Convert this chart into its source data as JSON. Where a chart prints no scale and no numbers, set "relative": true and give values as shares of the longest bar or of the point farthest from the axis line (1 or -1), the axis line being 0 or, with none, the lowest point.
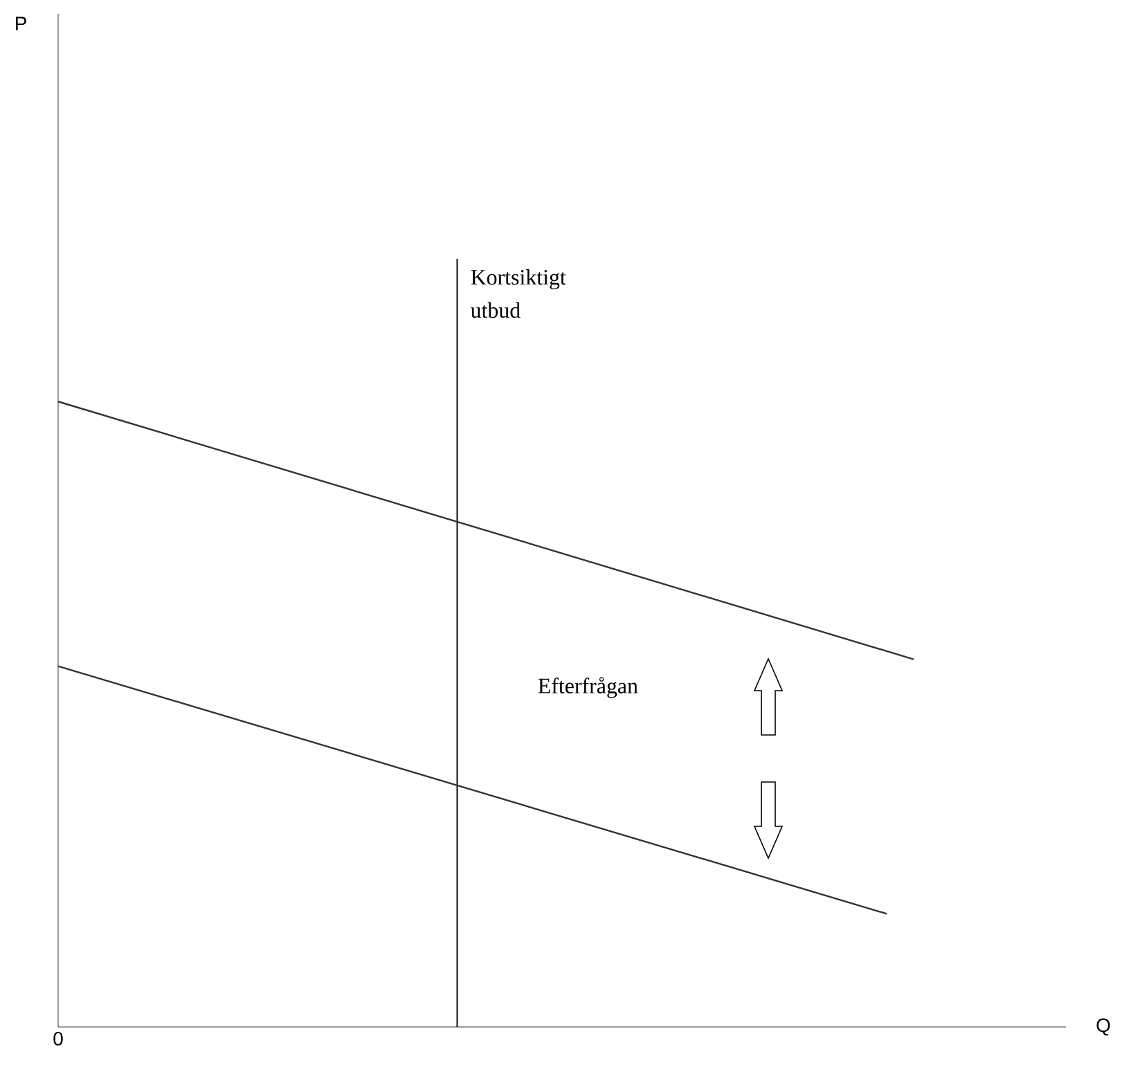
{
  "chart_data": {
    "type": "line",
    "relative": true,
    "categories": [
      null,
      null,
      null,
      null,
      null,
      null,
      null,
      null,
      null,
      null,
      null,
      null,
      null,
      null,
      null,
      null,
      null,
      null,
      null,
      null,
      null,
      null,
      null,
      null,
      null,
      null,
      null,
      null,
      null,
      null,
      null,
      null,
      null
    ],
    "series": [
      {
        "color": "#333333",
        "values": [
          1,
          null,
          null,
          null,
          null,
          null,
          null,
          null,
          null,
          null,
          null,
          null,
          null,
          null,
          null,
          null,
          null,
          null,
          null,
          null,
          null,
          null,
          null,
          null,
          null,
          null,
          null,
          null,
          null,
          null,
          null,
          null,
          0.588
        ]
      },
      {
        "color": "#333333",
        "values": [
          0.577,
          null,
          null,
          null,
          null,
          null,
          null,
          null,
          null,
          null,
          null,
          null,
          null,
          null,
          null,
          null,
          null,
          null,
          null,
          null,
          null,
          null,
          null,
          null,
          null,
          null,
          null,
          null,
          null,
          null,
          null,
          0.181,
          null
        ]
      }
    ],
    "annotations": [
      "Kortsiktigt utbud",
      "Efterfrågan",
      "0",
      "P",
      "Q"
    ],
    "marker": "none",
    "line_style": "solid"
  }
}
